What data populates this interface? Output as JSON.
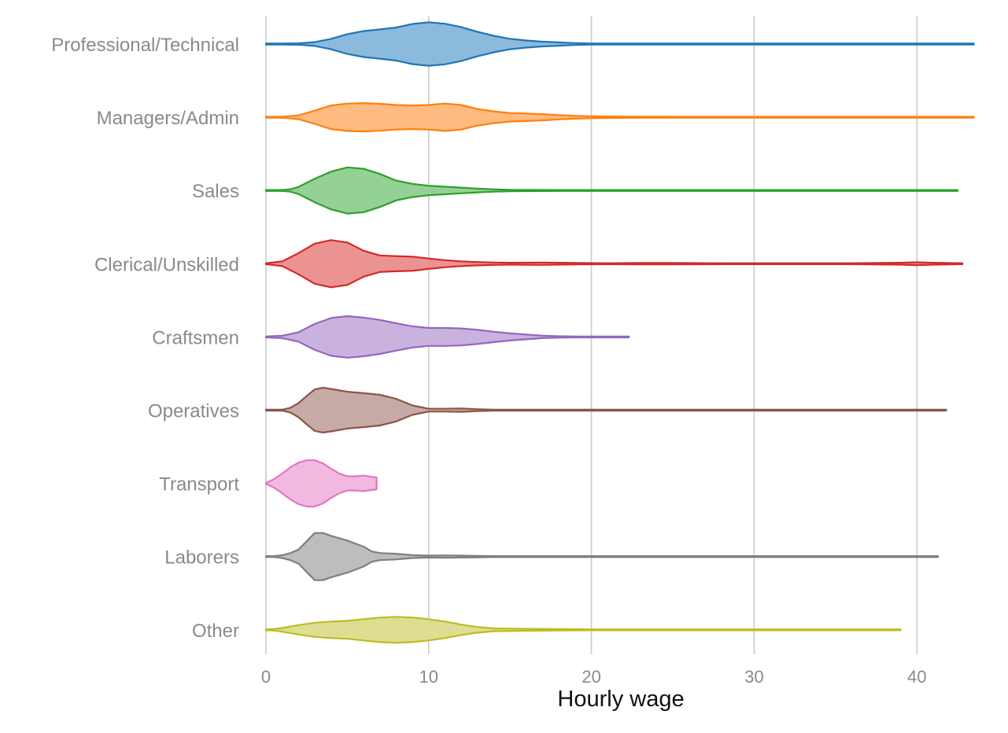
{
  "chart_data": {
    "type": "violin",
    "orientation": "horizontal",
    "xlabel": "Hourly wage",
    "ylabel": "",
    "xlim": [
      0,
      43.5
    ],
    "xticks": [
      0,
      10,
      20,
      30,
      40
    ],
    "grid": "vertical",
    "legend": "none",
    "series": [
      {
        "name": "Professional/Technical",
        "color": "#1f77b4",
        "fill": "#8cbadd",
        "range": [
          0,
          43.5
        ],
        "density": [
          [
            0,
            0
          ],
          [
            1,
            0.01
          ],
          [
            2,
            0.03
          ],
          [
            3,
            0.08
          ],
          [
            4,
            0.22
          ],
          [
            5,
            0.42
          ],
          [
            6,
            0.55
          ],
          [
            7,
            0.62
          ],
          [
            8,
            0.7
          ],
          [
            9,
            0.85
          ],
          [
            10,
            0.92
          ],
          [
            11,
            0.86
          ],
          [
            12,
            0.72
          ],
          [
            13,
            0.52
          ],
          [
            14,
            0.35
          ],
          [
            15,
            0.22
          ],
          [
            16,
            0.15
          ],
          [
            17,
            0.1
          ],
          [
            18,
            0.07
          ],
          [
            19,
            0.04
          ],
          [
            20,
            0.02
          ],
          [
            22,
            0.01
          ],
          [
            25,
            0.008
          ],
          [
            30,
            0.005
          ],
          [
            35,
            0.004
          ],
          [
            38,
            0.006
          ],
          [
            40,
            0.015
          ],
          [
            41,
            0.006
          ],
          [
            43.5,
            0.003
          ]
        ]
      },
      {
        "name": "Managers/Admin",
        "color": "#ff7f0e",
        "fill": "#ffbb80",
        "range": [
          0,
          43.5
        ],
        "density": [
          [
            0,
            0
          ],
          [
            1,
            0.02
          ],
          [
            2,
            0.08
          ],
          [
            3,
            0.28
          ],
          [
            4,
            0.5
          ],
          [
            5,
            0.58
          ],
          [
            6,
            0.6
          ],
          [
            7,
            0.57
          ],
          [
            8,
            0.52
          ],
          [
            9,
            0.5
          ],
          [
            10,
            0.52
          ],
          [
            11,
            0.58
          ],
          [
            12,
            0.52
          ],
          [
            13,
            0.35
          ],
          [
            14,
            0.25
          ],
          [
            15,
            0.18
          ],
          [
            16,
            0.16
          ],
          [
            17,
            0.13
          ],
          [
            18,
            0.09
          ],
          [
            19,
            0.06
          ],
          [
            20,
            0.04
          ],
          [
            22,
            0.025
          ],
          [
            25,
            0.02
          ],
          [
            30,
            0.02
          ],
          [
            35,
            0.01
          ],
          [
            40,
            0.02
          ],
          [
            41,
            0.01
          ],
          [
            43.5,
            0.005
          ]
        ]
      },
      {
        "name": "Sales",
        "color": "#2ca02c",
        "fill": "#95d095",
        "range": [
          0,
          42.5
        ],
        "density": [
          [
            0,
            0
          ],
          [
            1,
            0.01
          ],
          [
            1.5,
            0.05
          ],
          [
            2,
            0.15
          ],
          [
            3,
            0.5
          ],
          [
            4,
            0.8
          ],
          [
            5,
            0.98
          ],
          [
            6,
            0.92
          ],
          [
            7,
            0.7
          ],
          [
            8,
            0.42
          ],
          [
            9,
            0.28
          ],
          [
            10,
            0.2
          ],
          [
            11,
            0.16
          ],
          [
            12,
            0.12
          ],
          [
            13,
            0.08
          ],
          [
            14,
            0.05
          ],
          [
            15,
            0.03
          ],
          [
            18,
            0.02
          ],
          [
            20,
            0.01
          ],
          [
            25,
            0.008
          ],
          [
            30,
            0.006
          ],
          [
            35,
            0.006
          ],
          [
            38,
            0.01
          ],
          [
            40,
            0.02
          ],
          [
            41,
            0.01
          ],
          [
            42.5,
            0.004
          ]
        ]
      },
      {
        "name": "Clerical/Unskilled",
        "color": "#d62728",
        "fill": "#eb9393",
        "range": [
          0,
          42.8
        ],
        "density": [
          [
            0,
            0
          ],
          [
            1,
            0.1
          ],
          [
            2,
            0.45
          ],
          [
            3,
            0.85
          ],
          [
            4,
            1.0
          ],
          [
            5,
            0.9
          ],
          [
            6,
            0.55
          ],
          [
            7,
            0.35
          ],
          [
            8,
            0.32
          ],
          [
            9,
            0.3
          ],
          [
            10,
            0.22
          ],
          [
            11,
            0.15
          ],
          [
            12,
            0.1
          ],
          [
            13,
            0.07
          ],
          [
            14,
            0.05
          ],
          [
            15,
            0.04
          ],
          [
            17,
            0.05
          ],
          [
            19,
            0.03
          ],
          [
            21,
            0.02
          ],
          [
            23,
            0.03
          ],
          [
            25,
            0.03
          ],
          [
            28,
            0.02
          ],
          [
            30,
            0.02
          ],
          [
            33,
            0.02
          ],
          [
            36,
            0.02
          ],
          [
            39,
            0.04
          ],
          [
            40,
            0.06
          ],
          [
            41,
            0.04
          ],
          [
            42.8,
            0.01
          ]
        ]
      },
      {
        "name": "Craftsmen",
        "color": "#9467bd",
        "fill": "#c9b3de",
        "range": [
          0,
          22.3
        ],
        "density": [
          [
            0,
            0
          ],
          [
            1,
            0.05
          ],
          [
            2,
            0.2
          ],
          [
            3,
            0.55
          ],
          [
            4,
            0.8
          ],
          [
            5,
            0.88
          ],
          [
            6,
            0.82
          ],
          [
            7,
            0.72
          ],
          [
            8,
            0.58
          ],
          [
            9,
            0.45
          ],
          [
            10,
            0.38
          ],
          [
            11,
            0.38
          ],
          [
            12,
            0.36
          ],
          [
            13,
            0.3
          ],
          [
            14,
            0.22
          ],
          [
            15,
            0.15
          ],
          [
            16,
            0.1
          ],
          [
            17,
            0.05
          ],
          [
            18,
            0.03
          ],
          [
            19,
            0.02
          ],
          [
            20,
            0.015
          ],
          [
            21,
            0.01
          ],
          [
            22.3,
            0.003
          ]
        ]
      },
      {
        "name": "Operatives",
        "color": "#8c564b",
        "fill": "#c6aaa5",
        "range": [
          0,
          41.8
        ],
        "density": [
          [
            0,
            0
          ],
          [
            1,
            0.02
          ],
          [
            1.5,
            0.1
          ],
          [
            2,
            0.3
          ],
          [
            2.5,
            0.6
          ],
          [
            3,
            0.88
          ],
          [
            3.5,
            0.95
          ],
          [
            4,
            0.9
          ],
          [
            5,
            0.78
          ],
          [
            6,
            0.72
          ],
          [
            7,
            0.65
          ],
          [
            8,
            0.48
          ],
          [
            9,
            0.2
          ],
          [
            10,
            0.06
          ],
          [
            11,
            0.06
          ],
          [
            12,
            0.07
          ],
          [
            13,
            0.04
          ],
          [
            14,
            0.02
          ],
          [
            16,
            0.01
          ],
          [
            18,
            0.01
          ],
          [
            25,
            0.005
          ],
          [
            30,
            0.005
          ],
          [
            35,
            0.005
          ],
          [
            40,
            0.01
          ],
          [
            41.8,
            0.004
          ]
        ]
      },
      {
        "name": "Transport",
        "color": "#e377c2",
        "fill": "#f1b9e0",
        "range": [
          0,
          6.8
        ],
        "density": [
          [
            0,
            0.02
          ],
          [
            0.5,
            0.18
          ],
          [
            1,
            0.42
          ],
          [
            1.5,
            0.68
          ],
          [
            2,
            0.88
          ],
          [
            2.5,
            0.98
          ],
          [
            3,
            0.98
          ],
          [
            3.5,
            0.85
          ],
          [
            4,
            0.62
          ],
          [
            4.5,
            0.42
          ],
          [
            5,
            0.3
          ],
          [
            5.5,
            0.3
          ],
          [
            6,
            0.33
          ],
          [
            6.5,
            0.28
          ],
          [
            6.8,
            0.25
          ]
        ]
      },
      {
        "name": "Laborers",
        "color": "#7f7f7f",
        "fill": "#bdbdbd",
        "range": [
          0,
          41.3
        ],
        "density": [
          [
            0,
            0
          ],
          [
            0.5,
            0.02
          ],
          [
            1,
            0.06
          ],
          [
            1.5,
            0.15
          ],
          [
            2,
            0.3
          ],
          [
            2.5,
            0.65
          ],
          [
            3,
            1.0
          ],
          [
            3.5,
            1.0
          ],
          [
            4,
            0.88
          ],
          [
            5,
            0.68
          ],
          [
            6,
            0.42
          ],
          [
            6.5,
            0.22
          ],
          [
            7,
            0.15
          ],
          [
            8,
            0.12
          ],
          [
            9,
            0.06
          ],
          [
            10,
            0.04
          ],
          [
            11,
            0.05
          ],
          [
            12,
            0.04
          ],
          [
            13,
            0.03
          ],
          [
            14,
            0.02
          ],
          [
            16,
            0.01
          ],
          [
            18,
            0.02
          ],
          [
            20,
            0.02
          ],
          [
            22,
            0.01
          ],
          [
            25,
            0.005
          ],
          [
            28,
            0.01
          ],
          [
            30,
            0.005
          ],
          [
            35,
            0.004
          ],
          [
            40,
            0.006
          ],
          [
            41.3,
            0.003
          ]
        ]
      },
      {
        "name": "Other",
        "color": "#bcbd22",
        "fill": "#dede92",
        "range": [
          0,
          39
        ],
        "density": [
          [
            0,
            0
          ],
          [
            0.5,
            0.03
          ],
          [
            1,
            0.08
          ],
          [
            2,
            0.2
          ],
          [
            3,
            0.3
          ],
          [
            4,
            0.35
          ],
          [
            5,
            0.38
          ],
          [
            6,
            0.45
          ],
          [
            7,
            0.52
          ],
          [
            8,
            0.55
          ],
          [
            9,
            0.52
          ],
          [
            10,
            0.45
          ],
          [
            11,
            0.35
          ],
          [
            12,
            0.22
          ],
          [
            13,
            0.12
          ],
          [
            14,
            0.06
          ],
          [
            16,
            0.04
          ],
          [
            18,
            0.03
          ],
          [
            20,
            0.02
          ],
          [
            22,
            0.01
          ],
          [
            25,
            0.006
          ],
          [
            30,
            0.005
          ],
          [
            35,
            0.004
          ],
          [
            39,
            0.003
          ]
        ]
      }
    ]
  }
}
